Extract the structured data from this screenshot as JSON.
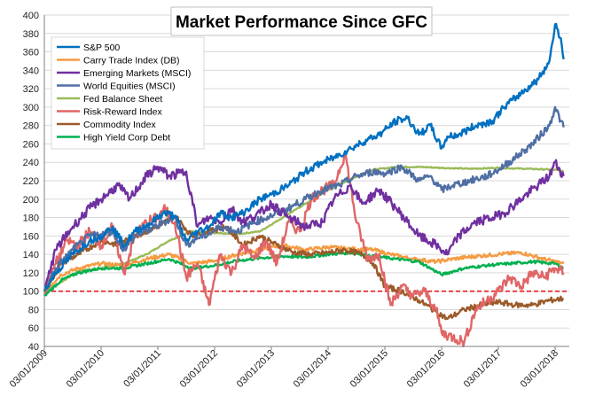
{
  "chart_data": {
    "type": "line",
    "title": "Market Performance Since GFC",
    "xlabel": "",
    "ylabel": "",
    "ylim": [
      40,
      400
    ],
    "yticks": [
      40,
      60,
      80,
      100,
      120,
      140,
      160,
      180,
      200,
      220,
      240,
      260,
      280,
      300,
      320,
      340,
      360,
      380,
      400
    ],
    "x_tick_labels": [
      "03/01/2009",
      "03/01/2010",
      "03/01/2011",
      "03/01/2012",
      "03/01/2013",
      "03/01/2014",
      "03/01/2015",
      "03/01/2016",
      "03/01/2017",
      "03/01/2018"
    ],
    "xlim": [
      2009.0,
      2018.25
    ],
    "grid": true,
    "legend_position": "top-left",
    "reference_line": {
      "y": 100,
      "color": "#e31a1c",
      "style": "dashed"
    },
    "series": [
      {
        "name": "S&P 500",
        "color": "#0070c0",
        "x": [
          2009.0,
          2009.2,
          2009.5,
          2009.8,
          2010.0,
          2010.2,
          2010.4,
          2010.6,
          2010.9,
          2011.1,
          2011.3,
          2011.5,
          2011.7,
          2011.9,
          2012.1,
          2012.3,
          2012.5,
          2012.8,
          2013.0,
          2013.3,
          2013.6,
          2013.9,
          2014.1,
          2014.4,
          2014.7,
          2014.9,
          2015.2,
          2015.4,
          2015.6,
          2015.8,
          2016.0,
          2016.1,
          2016.3,
          2016.6,
          2016.9,
          2017.1,
          2017.4,
          2017.7,
          2017.9,
          2018.0,
          2018.1,
          2018.15
        ],
        "values": [
          100,
          120,
          140,
          155,
          160,
          170,
          150,
          165,
          175,
          185,
          182,
          155,
          165,
          170,
          185,
          180,
          185,
          200,
          205,
          215,
          230,
          240,
          245,
          255,
          265,
          270,
          285,
          288,
          270,
          280,
          255,
          268,
          270,
          280,
          285,
          300,
          315,
          330,
          350,
          390,
          375,
          352
        ]
      },
      {
        "name": "Carry Trade Index (DB)",
        "color": "#f59b42",
        "x": [
          2009.0,
          2009.3,
          2009.6,
          2010.0,
          2010.4,
          2010.8,
          2011.2,
          2011.6,
          2012.0,
          2012.4,
          2012.8,
          2013.2,
          2013.6,
          2014.0,
          2014.4,
          2014.8,
          2015.1,
          2015.5,
          2015.9,
          2016.2,
          2016.6,
          2017.0,
          2017.4,
          2017.8,
          2018.15
        ],
        "values": [
          100,
          118,
          125,
          130,
          128,
          135,
          140,
          130,
          133,
          140,
          145,
          150,
          145,
          148,
          146,
          145,
          140,
          135,
          132,
          135,
          138,
          140,
          142,
          135,
          130
        ]
      },
      {
        "name": "Emerging Markets (MSCI)",
        "color": "#7030a0",
        "x": [
          2009.0,
          2009.2,
          2009.5,
          2009.8,
          2010.0,
          2010.3,
          2010.5,
          2010.8,
          2011.0,
          2011.2,
          2011.5,
          2011.7,
          2011.9,
          2012.1,
          2012.3,
          2012.5,
          2012.8,
          2013.0,
          2013.3,
          2013.6,
          2013.9,
          2014.1,
          2014.4,
          2014.6,
          2014.9,
          2015.2,
          2015.4,
          2015.6,
          2015.9,
          2016.1,
          2016.3,
          2016.6,
          2016.9,
          2017.1,
          2017.4,
          2017.7,
          2017.9,
          2018.0,
          2018.15
        ],
        "values": [
          100,
          145,
          170,
          190,
          200,
          215,
          200,
          225,
          235,
          225,
          230,
          170,
          180,
          175,
          190,
          175,
          185,
          195,
          180,
          170,
          175,
          200,
          215,
          195,
          210,
          190,
          175,
          160,
          150,
          140,
          160,
          175,
          180,
          185,
          200,
          215,
          225,
          240,
          225
        ]
      },
      {
        "name": "World Equities (MSCI)",
        "color": "#4f6fa5",
        "x": [
          2009.0,
          2009.2,
          2009.5,
          2009.8,
          2010.0,
          2010.2,
          2010.4,
          2010.6,
          2010.9,
          2011.1,
          2011.3,
          2011.5,
          2011.7,
          2011.9,
          2012.1,
          2012.4,
          2012.7,
          2013.0,
          2013.3,
          2013.6,
          2013.9,
          2014.2,
          2014.5,
          2014.8,
          2015.0,
          2015.3,
          2015.6,
          2015.8,
          2016.0,
          2016.2,
          2016.5,
          2016.8,
          2017.0,
          2017.3,
          2017.6,
          2017.9,
          2018.0,
          2018.1,
          2018.15
        ],
        "values": [
          100,
          125,
          145,
          160,
          162,
          165,
          145,
          160,
          168,
          175,
          180,
          150,
          158,
          162,
          170,
          165,
          175,
          182,
          190,
          200,
          210,
          215,
          225,
          230,
          228,
          235,
          220,
          225,
          210,
          215,
          220,
          225,
          232,
          245,
          260,
          280,
          300,
          285,
          278
        ]
      },
      {
        "name": "Fed Balance Sheet",
        "color": "#9bbb59",
        "x": [
          2009.0,
          2009.3,
          2009.6,
          2010.0,
          2010.4,
          2010.8,
          2011.2,
          2011.6,
          2012.0,
          2012.4,
          2012.8,
          2013.2,
          2013.6,
          2014.0,
          2014.4,
          2014.8,
          2015.2,
          2015.6,
          2016.0,
          2016.5,
          2017.0,
          2017.5,
          2018.0,
          2018.15
        ],
        "values": [
          100,
          110,
          122,
          125,
          130,
          140,
          155,
          165,
          163,
          162,
          165,
          180,
          195,
          210,
          222,
          232,
          235,
          235,
          234,
          233,
          234,
          233,
          232,
          230
        ]
      },
      {
        "name": "Risk-Reward Index",
        "color": "#e06666",
        "x": [
          2009.0,
          2009.2,
          2009.4,
          2009.6,
          2009.8,
          2010.0,
          2010.2,
          2010.4,
          2010.6,
          2010.8,
          2011.0,
          2011.1,
          2011.3,
          2011.5,
          2011.7,
          2011.9,
          2012.1,
          2012.3,
          2012.5,
          2012.7,
          2012.9,
          2013.1,
          2013.3,
          2013.5,
          2013.7,
          2013.9,
          2014.1,
          2014.3,
          2014.5,
          2014.7,
          2014.9,
          2015.1,
          2015.3,
          2015.5,
          2015.7,
          2015.9,
          2016.0,
          2016.2,
          2016.4,
          2016.6,
          2016.8,
          2017.0,
          2017.2,
          2017.4,
          2017.6,
          2017.8,
          2018.0,
          2018.15
        ],
        "values": [
          100,
          130,
          155,
          150,
          165,
          150,
          170,
          120,
          160,
          175,
          180,
          190,
          175,
          115,
          130,
          85,
          140,
          120,
          150,
          135,
          155,
          130,
          175,
          165,
          200,
          210,
          215,
          250,
          175,
          135,
          140,
          85,
          105,
          95,
          100,
          80,
          55,
          50,
          45,
          80,
          90,
          100,
          115,
          105,
          120,
          115,
          125,
          120
        ]
      },
      {
        "name": "Commodity Index",
        "color": "#9c5a2a",
        "x": [
          2009.0,
          2009.3,
          2009.6,
          2010.0,
          2010.3,
          2010.6,
          2011.0,
          2011.3,
          2011.6,
          2011.9,
          2012.2,
          2012.5,
          2012.8,
          2013.1,
          2013.4,
          2013.7,
          2014.0,
          2014.3,
          2014.6,
          2014.8,
          2015.0,
          2015.3,
          2015.6,
          2015.9,
          2016.1,
          2016.4,
          2016.7,
          2017.0,
          2017.3,
          2017.6,
          2017.9,
          2018.15
        ],
        "values": [
          100,
          130,
          140,
          155,
          150,
          160,
          170,
          182,
          160,
          165,
          170,
          150,
          160,
          150,
          142,
          140,
          142,
          145,
          140,
          130,
          105,
          100,
          90,
          78,
          70,
          80,
          85,
          88,
          85,
          85,
          90,
          92
        ]
      },
      {
        "name": "High Yield Corp Debt",
        "color": "#00b050",
        "x": [
          2009.0,
          2009.3,
          2009.6,
          2010.0,
          2010.4,
          2010.8,
          2011.2,
          2011.6,
          2012.0,
          2012.4,
          2012.8,
          2013.2,
          2013.6,
          2014.0,
          2014.4,
          2014.8,
          2015.2,
          2015.6,
          2016.0,
          2016.4,
          2016.8,
          2017.2,
          2017.6,
          2018.0,
          2018.15
        ],
        "values": [
          95,
          112,
          120,
          125,
          125,
          130,
          135,
          125,
          128,
          133,
          136,
          138,
          137,
          140,
          142,
          138,
          135,
          132,
          118,
          125,
          128,
          130,
          132,
          130,
          125
        ]
      }
    ]
  }
}
